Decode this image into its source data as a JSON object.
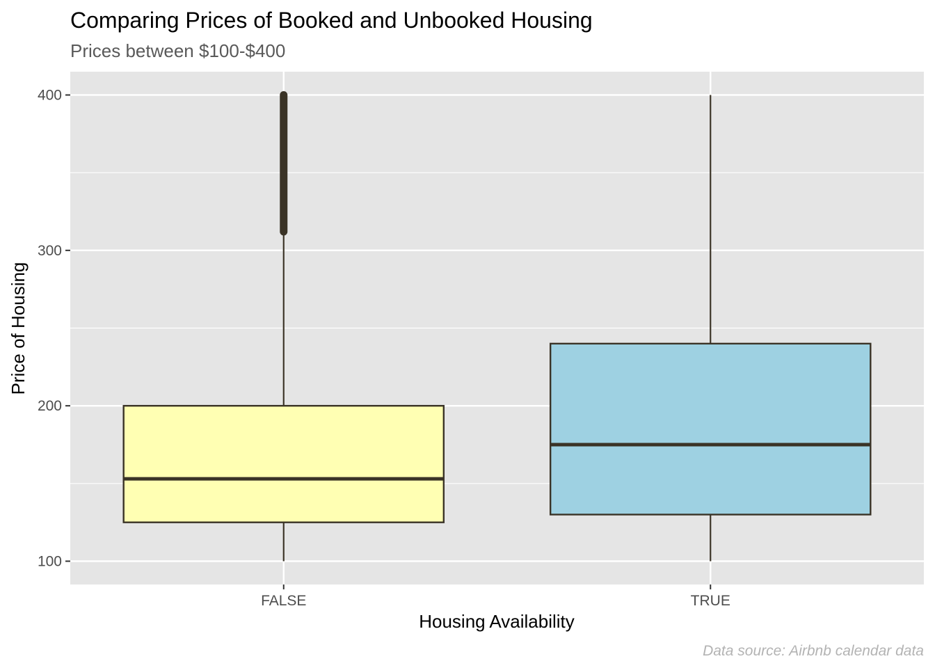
{
  "chart_data": {
    "type": "boxplot",
    "title": "Comparing Prices of Booked and Unbooked Housing",
    "subtitle": "Prices between $100-$400",
    "xlabel": "Housing Availability",
    "ylabel": "Price of Housing",
    "caption": "Data source: Airbnb calendar data",
    "categories": [
      "FALSE",
      "TRUE"
    ],
    "ylim": [
      85,
      415
    ],
    "yticks": [
      100,
      200,
      300,
      400
    ],
    "grid": true,
    "legend": "none",
    "boxes": [
      {
        "category": "FALSE",
        "min": 100,
        "q1": 125,
        "median": 153,
        "q3": 200,
        "whisker_high": 312,
        "outliers_range": [
          312,
          400
        ],
        "fill": "#ffffb3"
      },
      {
        "category": "TRUE",
        "min": 100,
        "q1": 130,
        "median": 175,
        "q3": 240,
        "max": 400,
        "fill": "#9ed1e2"
      }
    ],
    "colors": {
      "panel": "#e5e5e5",
      "grid": "#ffffff",
      "outline": "#3a3326"
    }
  }
}
